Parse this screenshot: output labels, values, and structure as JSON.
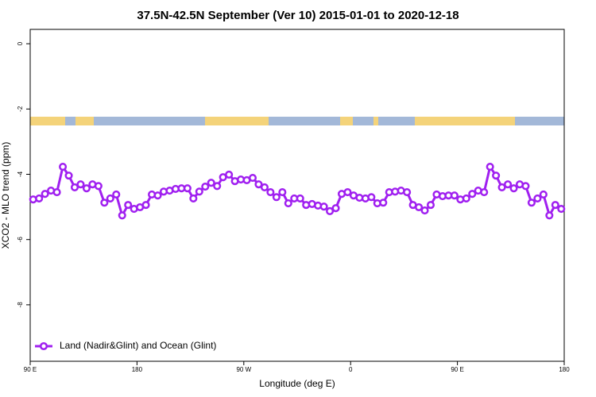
{
  "chart_data": {
    "type": "line",
    "title": "37.5N-42.5N September (Ver 10)   2015-01-01 to 2020-12-18",
    "x_label": "Longitude (deg E)",
    "y_label": "XCO2 - MLO trend (ppm)",
    "xlim": [
      90,
      540
    ],
    "ylim": [
      -9.73,
      0.44
    ],
    "xticks": [
      {
        "value": 90,
        "label": "90 E"
      },
      {
        "value": 180,
        "label": "180"
      },
      {
        "value": 270,
        "label": "90 W"
      },
      {
        "value": 360,
        "label": "0"
      },
      {
        "value": 450,
        "label": "90 E"
      },
      {
        "value": 540,
        "label": "180"
      }
    ],
    "yticks": [
      0,
      -2,
      -4,
      -6,
      -8
    ],
    "legend": "bottom-left",
    "x": [
      92.5,
      97.5,
      102.5,
      107.5,
      112.5,
      117.5,
      122.5,
      127.5,
      132.5,
      137.5,
      142.5,
      147.5,
      152.5,
      157.5,
      162.5,
      167.5,
      172.5,
      177.5,
      182.5,
      187.5,
      192.5,
      197.5,
      202.5,
      207.5,
      212.5,
      217.5,
      222.5,
      227.5,
      232.5,
      237.5,
      242.5,
      247.5,
      252.5,
      257.5,
      262.5,
      267.5,
      272.5,
      277.5,
      282.5,
      287.5,
      292.5,
      297.5,
      302.5,
      307.5,
      312.5,
      317.5,
      322.5,
      327.5,
      332.5,
      337.5,
      342.5,
      347.5,
      352.5,
      357.5,
      362.5,
      367.5,
      372.5,
      377.5,
      382.5,
      387.5,
      392.5,
      397.5,
      402.5,
      407.5,
      412.5,
      417.5,
      422.5,
      427.5,
      432.5,
      437.5,
      442.5,
      447.5,
      452.5,
      457.5,
      462.5,
      467.5,
      472.5,
      477.5,
      482.5,
      487.5,
      492.5,
      497.5,
      502.5,
      507.5,
      512.5,
      517.5,
      522.5,
      527.5,
      532.5,
      537.5
    ],
    "series": [
      {
        "name": "Land (Nadir&Glint) and Ocean (Glint)",
        "color": "#a020f0",
        "values": [
          -4.77,
          -4.74,
          -4.6,
          -4.5,
          -4.55,
          -3.77,
          -4.04,
          -4.4,
          -4.31,
          -4.43,
          -4.31,
          -4.36,
          -4.87,
          -4.74,
          -4.62,
          -5.26,
          -4.94,
          -5.06,
          -5.01,
          -4.94,
          -4.62,
          -4.65,
          -4.53,
          -4.5,
          -4.45,
          -4.43,
          -4.43,
          -4.74,
          -4.53,
          -4.38,
          -4.26,
          -4.36,
          -4.09,
          -4.01,
          -4.21,
          -4.16,
          -4.18,
          -4.11,
          -4.31,
          -4.4,
          -4.55,
          -4.7,
          -4.55,
          -4.89,
          -4.74,
          -4.74,
          -4.94,
          -4.91,
          -4.96,
          -4.99,
          -5.13,
          -5.04,
          -4.6,
          -4.55,
          -4.65,
          -4.72,
          -4.74,
          -4.7,
          -4.89,
          -4.87,
          -4.55,
          -4.53,
          -4.5,
          -4.55,
          -4.94,
          -5.01,
          -5.11,
          -4.94,
          -4.62,
          -4.67,
          -4.65,
          -4.65,
          -4.77,
          -4.74,
          -4.6,
          -4.5,
          -4.55,
          -3.77,
          -4.04,
          -4.4,
          -4.31,
          -4.43,
          -4.31,
          -4.36,
          -4.87,
          -4.74,
          -4.62,
          -5.26,
          -4.94,
          -5.06
        ]
      }
    ]
  }
}
